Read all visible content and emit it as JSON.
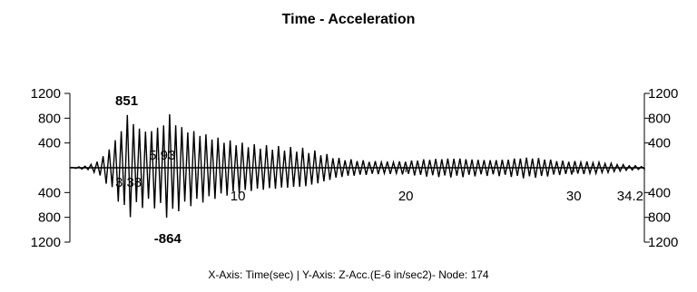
{
  "chart_data": {
    "type": "line",
    "title": "Time - Acceleration",
    "footer": "X-Axis: Time(sec) | Y-Axis: Z-Acc.(E-6 in/sec2)- Node: 174",
    "xlim": [
      0,
      34.2
    ],
    "ylim": [
      -1200,
      1200
    ],
    "x_ticks": [
      {
        "value": 10,
        "label": "10"
      },
      {
        "value": 20,
        "label": "20"
      },
      {
        "value": 30,
        "label": "30"
      },
      {
        "value": 34.2,
        "label": "34.2"
      }
    ],
    "y_ticks": [
      {
        "value": 1200,
        "label": "1200"
      },
      {
        "value": 800,
        "label": "800"
      },
      {
        "value": 400,
        "label": "400"
      },
      {
        "value": -400,
        "label": "400"
      },
      {
        "value": -800,
        "label": "800"
      },
      {
        "value": -1200,
        "label": "1200"
      }
    ],
    "annotations": [
      {
        "text": "851",
        "x": 3.38,
        "y": 851,
        "role": "max"
      },
      {
        "text": "-864",
        "x": 5.93,
        "y": -864,
        "role": "min"
      },
      {
        "text": "5.93",
        "x": 5.93,
        "y": 200,
        "role": "time-marker"
      },
      {
        "text": "3.38",
        "x": 3.38,
        "y": -200,
        "role": "time-marker"
      }
    ],
    "series": [
      {
        "color": "#000000",
        "envelope": [
          [
            0.0,
            0
          ],
          [
            1.0,
            30
          ],
          [
            1.5,
            80
          ],
          [
            2.0,
            200
          ],
          [
            2.5,
            380
          ],
          [
            3.0,
            600
          ],
          [
            3.38,
            851
          ],
          [
            4.0,
            700
          ],
          [
            4.5,
            620
          ],
          [
            5.0,
            650
          ],
          [
            5.5,
            720
          ],
          [
            5.93,
            864
          ],
          [
            6.5,
            700
          ],
          [
            7.0,
            640
          ],
          [
            8.0,
            560
          ],
          [
            9.0,
            480
          ],
          [
            10.0,
            420
          ],
          [
            11.0,
            380
          ],
          [
            12.0,
            360
          ],
          [
            13.0,
            340
          ],
          [
            14.0,
            320
          ],
          [
            15.0,
            250
          ],
          [
            16.0,
            160
          ],
          [
            17.0,
            130
          ],
          [
            18.0,
            110
          ],
          [
            19.0,
            100
          ],
          [
            20.0,
            110
          ],
          [
            21.0,
            140
          ],
          [
            22.0,
            150
          ],
          [
            23.0,
            160
          ],
          [
            24.0,
            140
          ],
          [
            25.0,
            130
          ],
          [
            26.0,
            140
          ],
          [
            27.0,
            170
          ],
          [
            28.0,
            160
          ],
          [
            29.0,
            120
          ],
          [
            30.0,
            110
          ],
          [
            31.0,
            100
          ],
          [
            32.0,
            80
          ],
          [
            33.0,
            50
          ],
          [
            34.2,
            20
          ]
        ],
        "period_sec": 0.36
      }
    ]
  }
}
